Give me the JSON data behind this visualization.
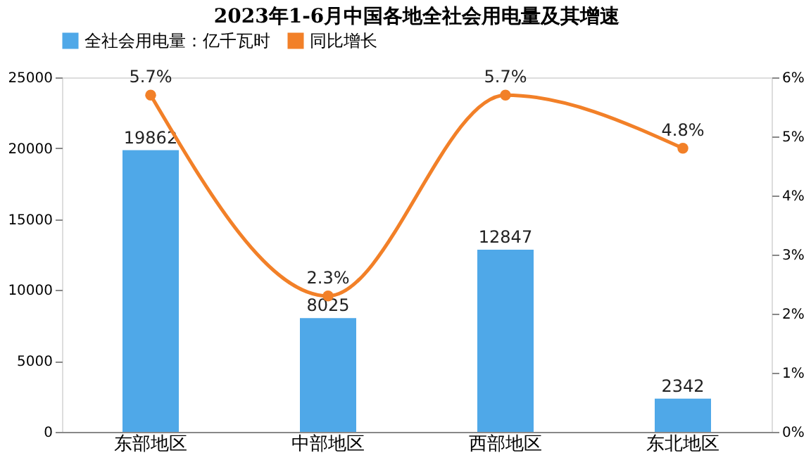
{
  "chart_data": {
    "type": "bar",
    "title": "2023年1-6月中国各地全社会用电量及其增速",
    "categories": [
      "东部地区",
      "中部地区",
      "西部地区",
      "东北地区"
    ],
    "series": [
      {
        "name": "全社会用电量：亿千瓦时",
        "color": "#4fa8e8",
        "values": [
          19862,
          8025,
          12847,
          2342
        ],
        "value_labels": [
          "19862",
          "8025",
          "12847",
          "2342"
        ]
      },
      {
        "name": "同比增长",
        "type": "line",
        "axis": "y2",
        "color": "#f28028",
        "values": [
          5.7,
          2.3,
          5.7,
          4.8
        ],
        "value_labels": [
          "5.7%",
          "2.3%",
          "5.7%",
          "4.8%"
        ]
      }
    ],
    "ylim": [
      0,
      25000
    ],
    "yticks": [
      0,
      5000,
      10000,
      15000,
      20000,
      25000
    ],
    "y2lim": [
      0,
      6
    ],
    "y2ticks": [
      {
        "value": 0,
        "label": "0%"
      },
      {
        "value": 1,
        "label": "1%"
      },
      {
        "value": 2,
        "label": "2%"
      },
      {
        "value": 3,
        "label": "3%"
      },
      {
        "value": 4,
        "label": "4%"
      },
      {
        "value": 5,
        "label": "5%"
      },
      {
        "value": 6,
        "label": "6%"
      }
    ],
    "legend": "top",
    "grid": false,
    "marker": "circle"
  }
}
